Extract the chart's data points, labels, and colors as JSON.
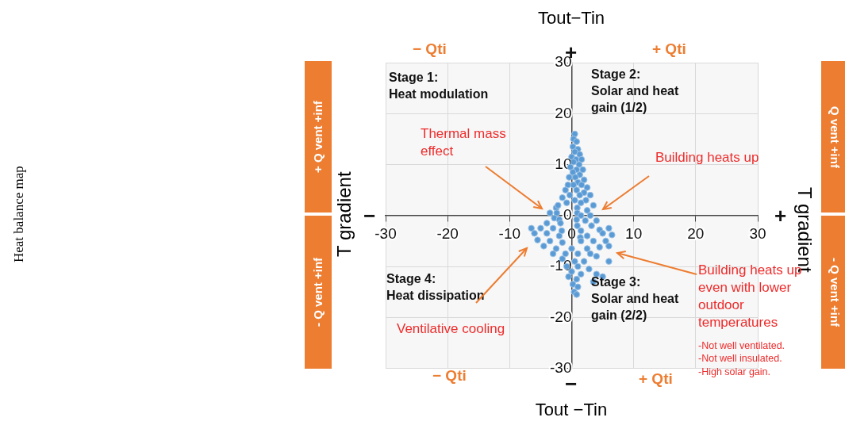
{
  "chart_data": {
    "type": "scatter",
    "title": "Heat balance map",
    "x2label": "Tout−Tin",
    "xlabel": "Tout −Tin",
    "ylabel": "T gradient",
    "y2label": "T gradient",
    "xlim": [
      -30,
      30
    ],
    "ylim": [
      -30,
      30
    ],
    "xticks": [
      -30,
      -20,
      -10,
      0,
      10,
      20,
      30
    ],
    "yticks": [
      -30,
      -20,
      -10,
      0,
      10,
      20,
      30
    ],
    "grid": true,
    "marker": "circle",
    "series": [
      {
        "color": "#5b9bd5",
        "x": [
          0.5,
          0.3,
          0.8,
          0.2,
          1,
          0.5,
          1.3,
          0,
          0.7,
          1.6,
          0.3,
          1.2,
          -0.2,
          0.8,
          1.8,
          0.2,
          1.3,
          -0.4,
          0.6,
          2,
          1,
          -0.6,
          0.3,
          1.6,
          2.5,
          -1,
          0.8,
          2,
          -0.3,
          1.3,
          3,
          -1.5,
          0.5,
          2.3,
          -0.8,
          1.5,
          3.5,
          -2.5,
          -2.2,
          0.9,
          2.5,
          -3.5,
          -2.4,
          0.9,
          1.5,
          3,
          -2.8,
          -2,
          0.8,
          2.2,
          4,
          -4,
          -1.8,
          0.9,
          3.2,
          -6.5,
          -5,
          -3,
          -1.6,
          1.5,
          4.5,
          6,
          -6,
          -4,
          -2,
          1.4,
          2.5,
          5,
          6.5,
          -5.5,
          -3.5,
          -1.5,
          1.5,
          3.5,
          5.5,
          -4.5,
          -2.5,
          0,
          2.5,
          4.5,
          6,
          -3,
          -1,
          1,
          3,
          4,
          -1.5,
          0.5,
          2,
          6,
          -0.8,
          1,
          2.8,
          4,
          5,
          3.5,
          0,
          1.5,
          -0.5,
          0.8,
          0.2,
          1,
          0.4,
          0.8
        ],
        "values": [
          16,
          15,
          14.5,
          13.5,
          13,
          12.5,
          12,
          11.5,
          11,
          11,
          10.5,
          10,
          9.5,
          9,
          9,
          8.5,
          8,
          7.5,
          7.5,
          7,
          6.5,
          6,
          6,
          6,
          5.5,
          5,
          5,
          4.5,
          4,
          4,
          4,
          3.5,
          3,
          3,
          2.5,
          2.5,
          2,
          1.5,
          2,
          1.5,
          1,
          0.5,
          0.5,
          0.5,
          0,
          0,
          -0.5,
          -0.8,
          -0.8,
          -1,
          -1,
          -1.5,
          -1.5,
          -2,
          -2,
          -2.5,
          -2.5,
          -2.5,
          -3,
          -3,
          -2.8,
          -2.5,
          -3.5,
          -3.5,
          -4,
          -4.3,
          -4,
          -3.5,
          -3.8,
          -4.8,
          -5,
          -5.3,
          -5,
          -5,
          -5,
          -6,
          -6.5,
          -6.5,
          -6.5,
          -6.2,
          -6,
          -7.5,
          -7.5,
          -7.5,
          -7.5,
          -8,
          -8.5,
          -9,
          -9,
          -9,
          -10,
          -10,
          -10.5,
          -11.5,
          -12,
          -13,
          -11,
          -11.5,
          -12,
          -12.5,
          -13.5,
          -14,
          -15,
          -15.5
        ]
      }
    ],
    "annotations": [
      "− Qti",
      "+ Qti",
      "− Qti",
      "+ Qti",
      "+ Q vent +inf",
      "- Q vent +inf",
      "Q vent +inf",
      "- Q vent +inf",
      "+",
      "−",
      "−",
      "+",
      "Stage 1:\nHeat modulation",
      "Stage 2:\nSolar and heat\ngain (1/2)",
      "Stage 4:\nHeat dissipation",
      "Stage 3:\nSolar and heat\ngain (2/2)",
      "Thermal mass\neffect",
      "Building heats up",
      "Ventilative cooling",
      "Building heats up\neven with lower\noutdoor\ntemperatures",
      "-Not well ventilated.\n-Not well insulated.\n-High solar gain."
    ]
  }
}
